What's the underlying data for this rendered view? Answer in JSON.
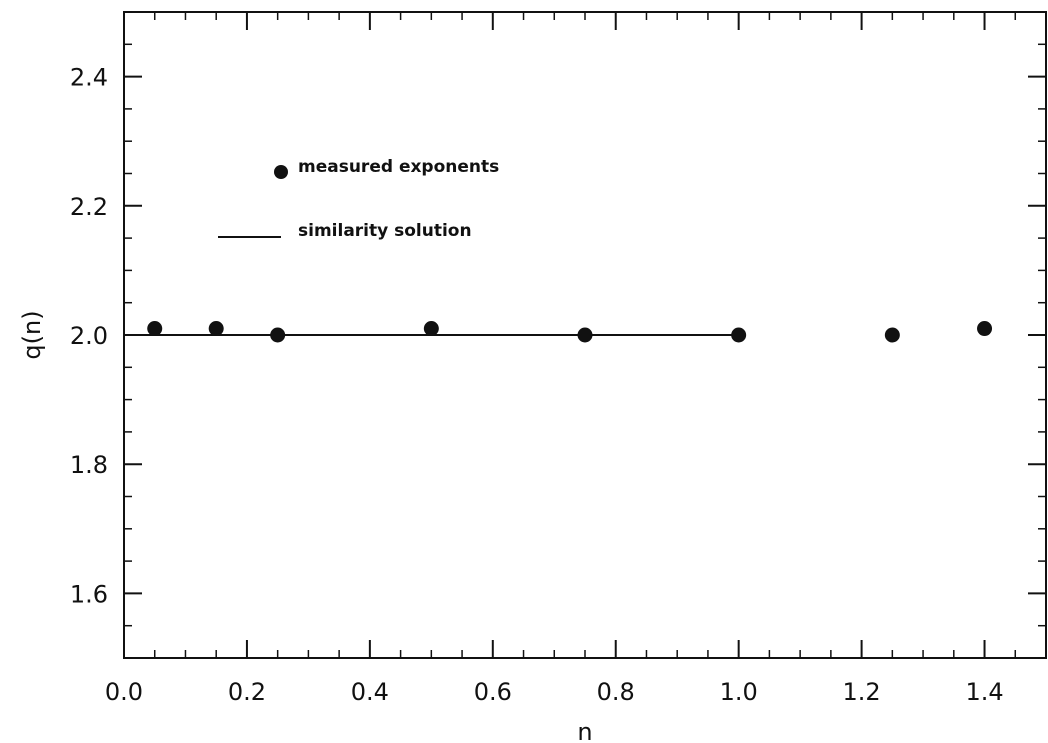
{
  "chart_data": {
    "type": "scatter",
    "title": "",
    "xlabel": "n",
    "ylabel": "q(n)",
    "xlim": [
      0.0,
      1.5
    ],
    "ylim": [
      1.5,
      2.5
    ],
    "xticks": [
      {
        "value": 0.0,
        "label": "0.0"
      },
      {
        "value": 0.2,
        "label": "0.2"
      },
      {
        "value": 0.4,
        "label": "0.4"
      },
      {
        "value": 0.6,
        "label": "0.6"
      },
      {
        "value": 0.8,
        "label": "0.8"
      },
      {
        "value": 1.0,
        "label": "1.0"
      },
      {
        "value": 1.2,
        "label": "1.2"
      },
      {
        "value": 1.4,
        "label": "1.4"
      }
    ],
    "yticks": [
      {
        "value": 1.6,
        "label": "1.6"
      },
      {
        "value": 1.8,
        "label": "1.8"
      },
      {
        "value": 2.0,
        "label": "2.0"
      },
      {
        "value": 2.2,
        "label": "2.2"
      },
      {
        "value": 2.4,
        "label": "2.4"
      }
    ],
    "grid": false,
    "legend_position": "upper-left",
    "series": [
      {
        "name": "measured exponents",
        "kind": "points",
        "x": [
          0.05,
          0.15,
          0.25,
          0.5,
          0.75,
          1.0,
          1.25,
          1.4
        ],
        "y": [
          2.01,
          2.01,
          2.0,
          2.01,
          2.0,
          2.0,
          2.0,
          2.01
        ]
      },
      {
        "name": "similarity solution",
        "kind": "line",
        "x": [
          0.0,
          1.0
        ],
        "y": [
          2.0,
          2.0
        ]
      }
    ]
  }
}
